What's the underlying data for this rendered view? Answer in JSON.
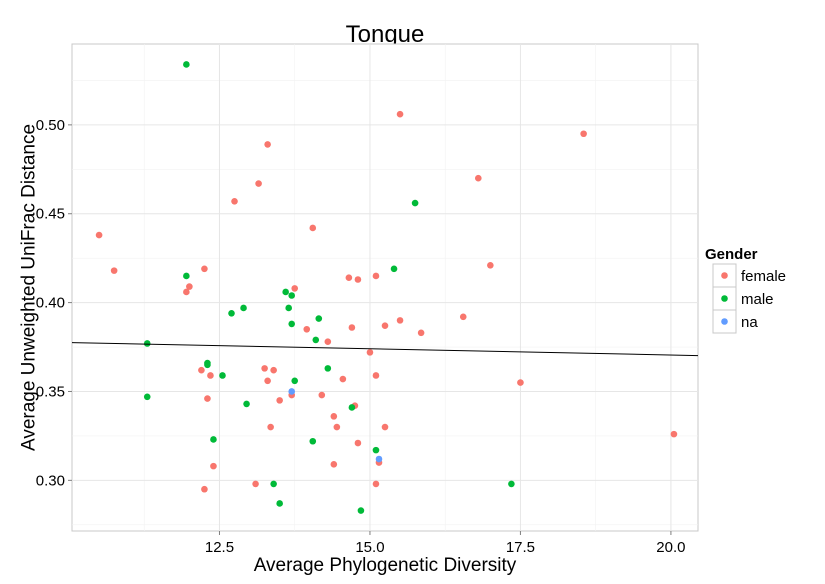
{
  "chart_data": {
    "type": "scatter",
    "title": "Tongue",
    "xlabel": "Average Phylogenetic Diversity",
    "ylabel": "Average Unweighted UniFrac Distance",
    "xlim": [
      10.05,
      20.45
    ],
    "ylim": [
      0.2715,
      0.5455
    ],
    "x_ticks": [
      12.5,
      15.0,
      17.5,
      20.0
    ],
    "x_tick_labels": [
      "12.5",
      "15.0",
      "17.5",
      "20.0"
    ],
    "y_ticks": [
      0.3,
      0.35,
      0.4,
      0.45,
      0.5
    ],
    "y_tick_labels": [
      "0.30",
      "0.35",
      "0.40",
      "0.45",
      "0.50"
    ],
    "grid": true,
    "legend": {
      "title": "Gender",
      "position": "right"
    },
    "trend_line": {
      "x": [
        10.05,
        20.45
      ],
      "y": [
        0.3775,
        0.3702
      ]
    },
    "series": [
      {
        "name": "female",
        "color": "#F8766D",
        "points": [
          [
            10.5,
            0.438
          ],
          [
            10.75,
            0.418
          ],
          [
            11.95,
            0.406
          ],
          [
            12.0,
            0.409
          ],
          [
            12.25,
            0.419
          ],
          [
            12.2,
            0.362
          ],
          [
            12.3,
            0.346
          ],
          [
            12.35,
            0.359
          ],
          [
            12.4,
            0.308
          ],
          [
            12.25,
            0.295
          ],
          [
            12.75,
            0.457
          ],
          [
            13.15,
            0.467
          ],
          [
            13.3,
            0.489
          ],
          [
            13.25,
            0.363
          ],
          [
            13.3,
            0.356
          ],
          [
            13.4,
            0.362
          ],
          [
            13.35,
            0.33
          ],
          [
            13.5,
            0.345
          ],
          [
            13.1,
            0.298
          ],
          [
            13.75,
            0.408
          ],
          [
            13.7,
            0.348
          ],
          [
            13.95,
            0.385
          ],
          [
            14.05,
            0.442
          ],
          [
            14.2,
            0.348
          ],
          [
            14.3,
            0.378
          ],
          [
            14.4,
            0.336
          ],
          [
            14.45,
            0.33
          ],
          [
            14.4,
            0.309
          ],
          [
            14.55,
            0.357
          ],
          [
            14.65,
            0.414
          ],
          [
            14.7,
            0.386
          ],
          [
            14.75,
            0.342
          ],
          [
            14.8,
            0.413
          ],
          [
            14.8,
            0.321
          ],
          [
            15.0,
            0.372
          ],
          [
            15.1,
            0.415
          ],
          [
            15.1,
            0.359
          ],
          [
            15.1,
            0.298
          ],
          [
            15.15,
            0.31
          ],
          [
            15.25,
            0.387
          ],
          [
            15.25,
            0.33
          ],
          [
            15.5,
            0.506
          ],
          [
            15.5,
            0.39
          ],
          [
            15.85,
            0.383
          ],
          [
            16.55,
            0.392
          ],
          [
            16.8,
            0.47
          ],
          [
            17.0,
            0.421
          ],
          [
            17.5,
            0.355
          ],
          [
            18.55,
            0.495
          ],
          [
            20.05,
            0.326
          ]
        ]
      },
      {
        "name": "male",
        "color": "#00BA38",
        "points": [
          [
            11.3,
            0.377
          ],
          [
            11.3,
            0.347
          ],
          [
            11.95,
            0.534
          ],
          [
            11.95,
            0.415
          ],
          [
            12.3,
            0.366
          ],
          [
            12.3,
            0.365
          ],
          [
            12.4,
            0.323
          ],
          [
            12.55,
            0.359
          ],
          [
            12.7,
            0.394
          ],
          [
            12.9,
            0.397
          ],
          [
            12.95,
            0.343
          ],
          [
            13.4,
            0.298
          ],
          [
            13.5,
            0.287
          ],
          [
            13.6,
            0.406
          ],
          [
            13.65,
            0.397
          ],
          [
            13.7,
            0.404
          ],
          [
            13.7,
            0.388
          ],
          [
            13.75,
            0.356
          ],
          [
            14.05,
            0.322
          ],
          [
            14.1,
            0.379
          ],
          [
            14.15,
            0.391
          ],
          [
            14.3,
            0.363
          ],
          [
            14.7,
            0.341
          ],
          [
            14.85,
            0.283
          ],
          [
            15.1,
            0.317
          ],
          [
            15.4,
            0.419
          ],
          [
            15.75,
            0.456
          ],
          [
            17.35,
            0.298
          ]
        ]
      },
      {
        "name": "na",
        "color": "#619CFF",
        "points": [
          [
            13.7,
            0.35
          ],
          [
            15.15,
            0.312
          ]
        ]
      }
    ]
  }
}
